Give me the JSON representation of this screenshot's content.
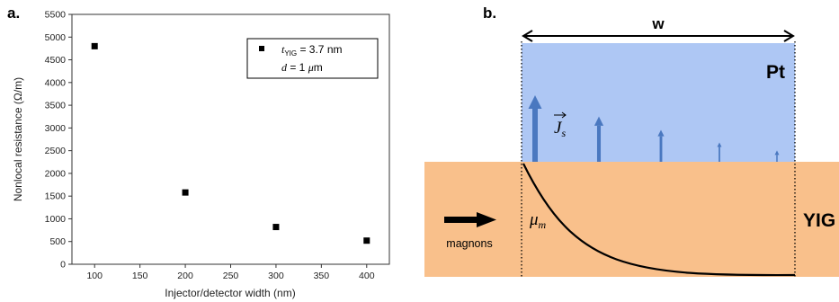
{
  "figure": {
    "panel_a_label": "a.",
    "panel_b_label": "b."
  },
  "chart_data": {
    "type": "scatter",
    "xlabel": "Injector/detector width (nm)",
    "ylabel": "Nonlocal resistance (Ω/m)",
    "xlim": [
      75,
      425
    ],
    "ylim": [
      0,
      5500
    ],
    "xticks": [
      100,
      150,
      200,
      250,
      300,
      350,
      400
    ],
    "yticks": [
      0,
      500,
      1000,
      1500,
      2000,
      2500,
      3000,
      3500,
      4000,
      4500,
      5000,
      5500
    ],
    "grid": false,
    "legend_position": "top-right",
    "marker": "square",
    "marker_color": "#000000",
    "legend": {
      "t_symbol": "t",
      "t_subscript": "YIG",
      "t_value": " = 3.7 nm",
      "d_symbol": "d",
      "d_value": " = 1 ",
      "mu": "μ",
      "d_unit": "m"
    },
    "series": [
      {
        "x": [
          100,
          200,
          300,
          400
        ],
        "y": [
          4800,
          1580,
          820,
          520
        ]
      }
    ]
  },
  "schematic": {
    "width_label": "w",
    "pt_label": "Pt",
    "yig_label": "YIG",
    "magnons_label": "magnons",
    "mu_symbol": "μ",
    "mu_subscript": "m",
    "js_symbol": "J",
    "js_subscript": "s",
    "pt_color": "#aec7f4",
    "yig_color": "#f9c08b",
    "arrow_color": "#4a78c0",
    "spin_current_magnitudes": [
      1.0,
      0.68,
      0.48,
      0.29,
      0.17
    ]
  }
}
